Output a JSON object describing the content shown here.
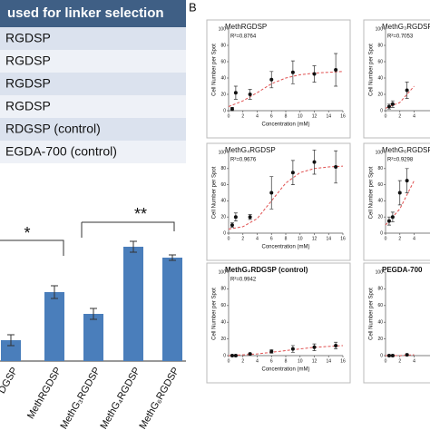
{
  "table": {
    "header": "used for linker selection",
    "rows": [
      "RGDSP",
      "RGDSP",
      "RGDSP",
      "RGDSP",
      "RDGSP (control)",
      "EGDA-700 (control)"
    ]
  },
  "panel_label": "B",
  "chart_data": [
    {
      "type": "bar",
      "categories": [
        "DGSP",
        "MethRGDSP",
        "MethG₃RGDSP",
        "MethG₄RGDSP",
        "MethG₆RGDSP"
      ],
      "values": [
        23,
        76,
        52,
        126,
        114
      ],
      "errors": [
        6,
        7,
        6,
        6,
        3
      ],
      "color": "#4a7ebb",
      "ylim": [
        0,
        130
      ],
      "annotations": [
        "*",
        "**"
      ]
    },
    {
      "type": "scatter",
      "title": "MethRGDSP",
      "annotation": "R²=0.8764",
      "x_label": "Concentration (mM)",
      "y_label": "Cell Number per Spot",
      "x": [
        0.5,
        1,
        3,
        6,
        9,
        12,
        15
      ],
      "values": [
        2,
        22,
        20,
        38,
        47,
        45,
        50
      ],
      "errors": [
        2,
        8,
        6,
        10,
        14,
        10,
        20
      ],
      "fit_x": [
        0,
        2,
        4,
        6,
        8,
        10,
        12,
        14,
        16
      ],
      "fit_values": [
        5,
        12,
        22,
        33,
        40,
        44,
        46,
        47,
        48
      ],
      "color": "#111111",
      "fit_color": "#e05050",
      "xlim": [
        0,
        16
      ],
      "ylim": [
        0,
        100
      ],
      "xticks": [
        0,
        2,
        4,
        6,
        8,
        10,
        12,
        14,
        16
      ],
      "yticks": [
        0,
        20,
        40,
        60,
        80,
        100
      ]
    },
    {
      "type": "scatter",
      "title": "MethG₄RGDSP",
      "annotation": "R²=0.9676",
      "x_label": "Concentration (mM)",
      "y_label": "Cell Number per Spot",
      "x": [
        0.5,
        1,
        3,
        6,
        9,
        12,
        15
      ],
      "values": [
        10,
        20,
        20,
        50,
        75,
        88,
        82
      ],
      "errors": [
        3,
        5,
        3,
        20,
        15,
        15,
        20
      ],
      "fit_x": [
        0,
        2,
        4,
        6,
        8,
        10,
        12,
        14,
        16
      ],
      "fit_values": [
        5,
        8,
        18,
        40,
        62,
        75,
        80,
        82,
        83
      ],
      "color": "#111111",
      "fit_color": "#e05050",
      "xlim": [
        0,
        16
      ],
      "ylim": [
        0,
        100
      ],
      "xticks": [
        0,
        2,
        4,
        6,
        8,
        10,
        12,
        14,
        16
      ],
      "yticks": [
        0,
        20,
        40,
        60,
        80,
        100
      ]
    },
    {
      "type": "scatter",
      "title": "MethG₂RDGSP (control)",
      "annotation": "R²=0.9942",
      "x_label": "Concentration (mM)",
      "y_label": "Cell Number per Spot",
      "x": [
        0.5,
        1,
        3,
        6,
        9,
        12,
        15
      ],
      "values": [
        0,
        0,
        2,
        5,
        8,
        10,
        12
      ],
      "errors": [
        1,
        1,
        1,
        2,
        4,
        4,
        4
      ],
      "fit_x": [
        0,
        2,
        4,
        6,
        8,
        10,
        12,
        14,
        16
      ],
      "fit_values": [
        0,
        1,
        2,
        4,
        6,
        8,
        10,
        11,
        12
      ],
      "color": "#111111",
      "fit_color": "#e05050",
      "xlim": [
        0,
        16
      ],
      "ylim": [
        0,
        100
      ],
      "xticks": [
        0,
        2,
        4,
        6,
        8,
        10,
        12,
        14,
        16
      ],
      "yticks": [
        0,
        20,
        40,
        60,
        80,
        100
      ]
    },
    {
      "type": "scatter",
      "title": "MethG₃RGDSP",
      "annotation": "R²=0.7053",
      "y_label": "Cell Number per Spot",
      "x": [
        0.5,
        1,
        3
      ],
      "values": [
        5,
        8,
        25
      ],
      "errors": [
        3,
        4,
        10
      ],
      "fit_x": [
        0,
        2,
        4
      ],
      "fit_values": [
        3,
        10,
        30
      ],
      "color": "#111111",
      "fit_color": "#e05050",
      "xlim": [
        0,
        16
      ],
      "ylim": [
        0,
        100
      ],
      "xticks": [
        0,
        2,
        4
      ],
      "yticks": [
        0,
        20,
        40,
        60,
        80,
        100
      ]
    },
    {
      "type": "scatter",
      "title": "MethG₆RGDSP",
      "annotation": "R²=0.9298",
      "y_label": "Cell Number per Spot",
      "x": [
        0.5,
        1,
        2,
        3
      ],
      "values": [
        15,
        20,
        50,
        65
      ],
      "errors": [
        5,
        6,
        15,
        15
      ],
      "fit_x": [
        0,
        2,
        4
      ],
      "fit_values": [
        10,
        30,
        65
      ],
      "color": "#111111",
      "fit_color": "#e05050",
      "xlim": [
        0,
        16
      ],
      "ylim": [
        0,
        100
      ],
      "xticks": [
        0,
        2,
        4
      ],
      "yticks": [
        0,
        20,
        40,
        60,
        80,
        100
      ]
    },
    {
      "type": "scatter",
      "title": "PEGDA-700",
      "y_label": "Cell Number per Spot",
      "x": [
        0.5,
        1,
        3
      ],
      "values": [
        0,
        0,
        1
      ],
      "errors": [
        1,
        1,
        1
      ],
      "fit_x": [
        0,
        2,
        4
      ],
      "fit_values": [
        0,
        0,
        1
      ],
      "color": "#111111",
      "fit_color": "#e05050",
      "xlim": [
        0,
        16
      ],
      "ylim": [
        0,
        100
      ],
      "xticks": [
        0,
        2,
        4
      ],
      "yticks": [
        0,
        20,
        40,
        60,
        80,
        100
      ]
    }
  ]
}
